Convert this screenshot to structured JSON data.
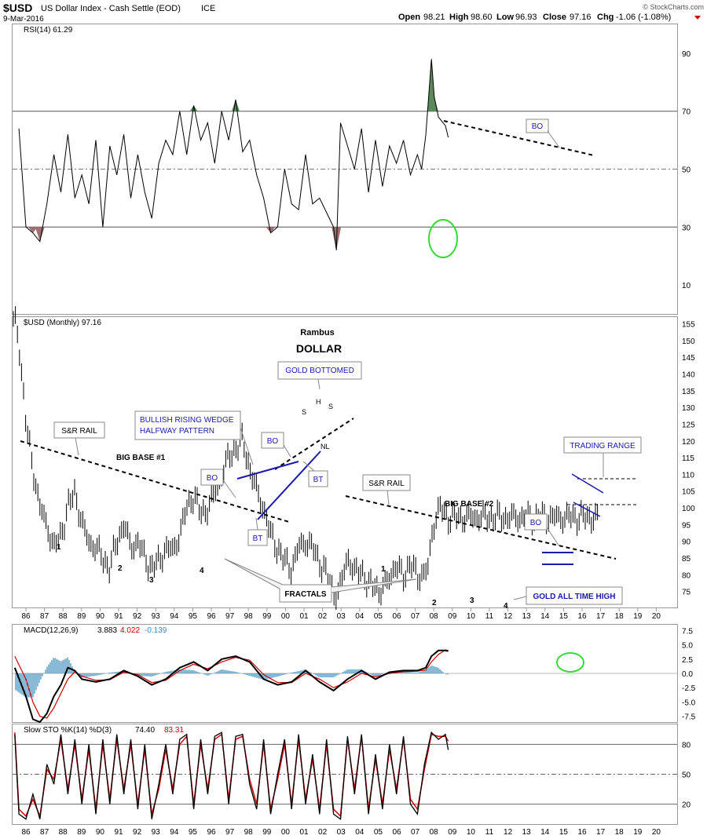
{
  "header": {
    "symbol": "$USD",
    "name": "US Dollar Index - Cash Settle (EOD)",
    "exchange": "ICE",
    "date": "9-Mar-2016",
    "open_label": "Open",
    "open": "98.21",
    "high_label": "High",
    "high": "98.60",
    "low_label": "Low",
    "low": "96.93",
    "close_label": "Close",
    "close": "97.16",
    "chg_label": "Chg",
    "chg": "-1.06 (-1.08%)",
    "copyright": "© StockCharts.com"
  },
  "colors": {
    "price": "#000000",
    "rsi_fill_low": "#a07070",
    "rsi_fill_high": "#5a8a5a",
    "macd_hist": "#3a8ab8",
    "signal": "#cc0000",
    "annotation_blue": "#1a1aaa",
    "highlight_green": "#33dd33"
  },
  "chart_data": [
    {
      "type": "line",
      "name": "rsi-panel",
      "legend": "RSI(14) 61.29",
      "ylim": [
        0,
        100
      ],
      "yticks": [
        90,
        70,
        50,
        30,
        10
      ],
      "reference_lines": [
        70,
        50,
        30
      ],
      "x": [
        1985.5,
        1986.0,
        1986.5,
        1987.0,
        1987.5,
        1988.0,
        1988.5,
        1989.0,
        1989.5,
        1990.0,
        1990.5,
        1991.0,
        1991.5,
        1992.0,
        1992.5,
        1993.0,
        1993.5,
        1994.0,
        1994.5,
        1995.0,
        1995.5,
        1996.0,
        1996.5,
        1997.0,
        1997.5,
        1998.0,
        1998.5,
        1999.0,
        1999.5,
        2000.0,
        2000.5,
        2001.0,
        2001.5,
        2002.0,
        2002.5,
        2003.0,
        2003.5,
        2004.0,
        2004.5,
        2005.0,
        2005.5,
        2006.0,
        2006.5,
        2007.0,
        2007.5,
        2008.0,
        2008.2,
        2008.5,
        2009.0,
        2009.5,
        2010.0,
        2010.5,
        2011.0,
        2011.5,
        2012.0,
        2012.5,
        2013.0,
        2013.5,
        2014.0,
        2014.3,
        2014.6,
        2015.0,
        2015.2,
        2015.5,
        2016.0,
        2016.2
      ],
      "values": [
        64,
        30,
        28,
        25,
        38,
        55,
        42,
        62,
        40,
        48,
        38,
        60,
        30,
        58,
        48,
        62,
        40,
        55,
        42,
        33,
        52,
        60,
        55,
        70,
        55,
        72,
        60,
        66,
        52,
        70,
        60,
        74,
        56,
        60,
        48,
        40,
        28,
        30,
        50,
        38,
        36,
        55,
        38,
        40,
        35,
        30,
        22,
        66,
        58,
        50,
        64,
        42,
        60,
        44,
        58,
        52,
        60,
        48,
        55,
        50,
        62,
        88,
        75,
        68,
        65,
        61
      ]
    },
    {
      "type": "bar",
      "name": "price-panel",
      "legend": "$USD (Monthly) 97.16",
      "title": "Rambus",
      "subtitle": "DOLLAR",
      "ylim": [
        70,
        157
      ],
      "yticks": [
        155,
        150,
        145,
        140,
        135,
        130,
        125,
        120,
        115,
        110,
        105,
        100,
        95,
        90,
        85,
        80,
        75
      ],
      "x": [
        1985.2,
        1985.5,
        1986.0,
        1986.5,
        1987.0,
        1987.5,
        1988.0,
        1988.5,
        1989.0,
        1989.5,
        1990.0,
        1990.5,
        1991.0,
        1991.5,
        1992.0,
        1992.5,
        1993.0,
        1993.5,
        1994.0,
        1994.5,
        1995.0,
        1995.5,
        1996.0,
        1996.5,
        1997.0,
        1997.5,
        1998.0,
        1998.5,
        1999.0,
        1999.5,
        2000.0,
        2000.5,
        2001.0,
        2001.5,
        2002.0,
        2002.5,
        2003.0,
        2003.5,
        2004.0,
        2004.5,
        2005.0,
        2005.5,
        2006.0,
        2006.5,
        2007.0,
        2007.5,
        2008.0,
        2008.3,
        2008.6,
        2009.0,
        2009.5,
        2010.0,
        2010.5,
        2011.0,
        2011.3,
        2011.6,
        2012.0,
        2012.5,
        2013.0,
        2013.5,
        2014.0,
        2014.4,
        2014.8,
        2015.0,
        2015.3,
        2015.6,
        2016.0,
        2016.2
      ],
      "values": [
        160,
        150,
        125,
        112,
        100,
        95,
        88,
        92,
        100,
        105,
        95,
        90,
        88,
        85,
        82,
        90,
        95,
        88,
        90,
        85,
        82,
        84,
        88,
        87,
        92,
        100,
        104,
        98,
        100,
        104,
        110,
        115,
        118,
        120,
        112,
        105,
        100,
        92,
        88,
        84,
        82,
        88,
        90,
        88,
        84,
        80,
        75,
        74,
        78,
        86,
        80,
        82,
        76,
        78,
        74,
        76,
        80,
        82,
        80,
        83,
        80,
        80,
        82,
        92,
        97,
        100,
        98,
        97.16
      ]
    },
    {
      "type": "line",
      "name": "macd-panel",
      "legend_main": "MACD(12,26,9)",
      "legend_macd": "3.883",
      "legend_signal": "4.022",
      "legend_hist": "-0.139",
      "ylim": [
        -8.5,
        8.5
      ],
      "yticks": [
        7.5,
        5.0,
        2.5,
        0.0,
        -2.5,
        -5.0,
        -7.5
      ],
      "x": [
        1985.2,
        1986.0,
        1986.5,
        1987.0,
        1987.5,
        1988.0,
        1988.5,
        1989.0,
        1989.5,
        1990.0,
        1991.0,
        1992.0,
        1993.0,
        1994.0,
        1995.0,
        1996.0,
        1997.0,
        1998.0,
        1999.0,
        2000.0,
        2001.0,
        2002.0,
        2003.0,
        2004.0,
        2005.0,
        2006.0,
        2007.0,
        2008.0,
        2009.0,
        2010.0,
        2011.0,
        2012.0,
        2013.0,
        2014.0,
        2014.6,
        2015.0,
        2015.5,
        2016.0,
        2016.2
      ],
      "series": [
        {
          "name": "MACD",
          "values": [
            1,
            -4,
            -8,
            -8.5,
            -7,
            -4,
            -2,
            1,
            0.5,
            -1,
            -1.5,
            -1,
            0.5,
            -0.5,
            -2,
            -1,
            1,
            2,
            0.5,
            2.5,
            3,
            2,
            -1,
            -2,
            -1.5,
            0.5,
            -1.5,
            -3,
            -1,
            0.5,
            -1,
            0.2,
            0.5,
            0.5,
            1,
            3,
            4,
            4,
            3.883
          ]
        },
        {
          "name": "Signal",
          "values": [
            3,
            -1,
            -5,
            -7.5,
            -7.8,
            -6,
            -3.5,
            -1,
            0.3,
            -0.5,
            -1.2,
            -1.1,
            0.2,
            -0.2,
            -1.6,
            -1.2,
            0.5,
            1.6,
            0.8,
            2,
            2.8,
            2.3,
            -0.2,
            -1.6,
            -1.6,
            0,
            -1,
            -2.5,
            -1.5,
            0,
            -0.6,
            0,
            0.3,
            0.4,
            0.6,
            2,
            3.3,
            4.1,
            4.022
          ]
        }
      ]
    },
    {
      "type": "line",
      "name": "sto-panel",
      "legend_main": "Slow STO %K(14) %D(3)",
      "legend_k": "74.40",
      "legend_d": "83.31",
      "ylim": [
        0,
        100
      ],
      "yticks": [
        80,
        50,
        20
      ],
      "reference_lines": [
        80,
        50,
        20
      ],
      "x": [
        1985.2,
        1985.5,
        1986.0,
        1986.5,
        1987.0,
        1987.5,
        1988.0,
        1988.5,
        1989.0,
        1989.5,
        1990.0,
        1990.5,
        1991.0,
        1991.5,
        1992.0,
        1992.5,
        1993.0,
        1993.5,
        1994.0,
        1994.5,
        1995.0,
        1995.5,
        1996.0,
        1996.5,
        1997.0,
        1997.5,
        1998.0,
        1998.5,
        1999.0,
        1999.5,
        2000.0,
        2000.5,
        2001.0,
        2001.5,
        2002.0,
        2002.5,
        2003.0,
        2003.5,
        2004.0,
        2004.5,
        2005.0,
        2005.5,
        2006.0,
        2006.5,
        2007.0,
        2007.5,
        2008.0,
        2008.5,
        2009.0,
        2009.5,
        2010.0,
        2010.5,
        2011.0,
        2011.5,
        2012.0,
        2012.5,
        2013.0,
        2013.5,
        2014.0,
        2014.5,
        2015.0,
        2015.5,
        2016.0,
        2016.2
      ],
      "series": [
        {
          "name": "%K",
          "values": [
            90,
            10,
            5,
            30,
            5,
            60,
            40,
            90,
            30,
            85,
            20,
            80,
            10,
            85,
            20,
            90,
            30,
            85,
            15,
            80,
            5,
            40,
            80,
            30,
            85,
            90,
            15,
            85,
            30,
            88,
            92,
            20,
            88,
            90,
            40,
            15,
            85,
            10,
            50,
            85,
            15,
            90,
            20,
            70,
            10,
            85,
            10,
            5,
            88,
            30,
            90,
            10,
            70,
            15,
            80,
            30,
            88,
            20,
            10,
            60,
            92,
            85,
            90,
            74.4
          ]
        },
        {
          "name": "%D",
          "values": [
            92,
            15,
            8,
            25,
            8,
            55,
            45,
            85,
            35,
            80,
            25,
            75,
            15,
            80,
            25,
            85,
            35,
            80,
            20,
            75,
            10,
            35,
            75,
            35,
            80,
            88,
            20,
            80,
            35,
            85,
            90,
            25,
            85,
            88,
            45,
            20,
            80,
            15,
            45,
            80,
            20,
            85,
            25,
            65,
            15,
            80,
            15,
            8,
            85,
            35,
            88,
            15,
            65,
            20,
            75,
            35,
            85,
            25,
            15,
            55,
            90,
            88,
            88,
            83.31
          ]
        }
      ]
    },
    {
      "type": "table",
      "name": "x-axis",
      "tick_labels": [
        "86",
        "87",
        "88",
        "89",
        "90",
        "91",
        "92",
        "93",
        "94",
        "95",
        "96",
        "97",
        "98",
        "99",
        "00",
        "01",
        "02",
        "03",
        "04",
        "05",
        "06",
        "07",
        "08",
        "09",
        "10",
        "11",
        "12",
        "13",
        "14",
        "15",
        "16",
        "17",
        "18",
        "19",
        "20"
      ]
    }
  ],
  "annotations": {
    "gold_bottomed": "GOLD BOTTOMED",
    "wedge_line1": "BULLISH RISING WEDGE",
    "wedge_line2": "HALFWAY PATTERN",
    "sr_rail_1": "S&R RAIL",
    "sr_rail_2": "S&R RAIL",
    "big_base_1": "BIG BASE #1",
    "big_base_2": "BIG BASE #2",
    "trading_range": "TRADING RANGE",
    "fractals": "FRACTALS",
    "gold_all_time_high": "GOLD ALL TIME HIGH",
    "bo_1": "BO",
    "bo_2": "BO",
    "bo_3": "BO",
    "bo_rsi": "BO",
    "bt_1": "BT",
    "bt_2": "BT",
    "h": "H",
    "s_left": "S",
    "s_right": "S",
    "nl": "NL",
    "base1_labels": [
      "1",
      "2",
      "3",
      "4"
    ],
    "base2_labels": [
      "1",
      "2",
      "3",
      "4"
    ]
  }
}
